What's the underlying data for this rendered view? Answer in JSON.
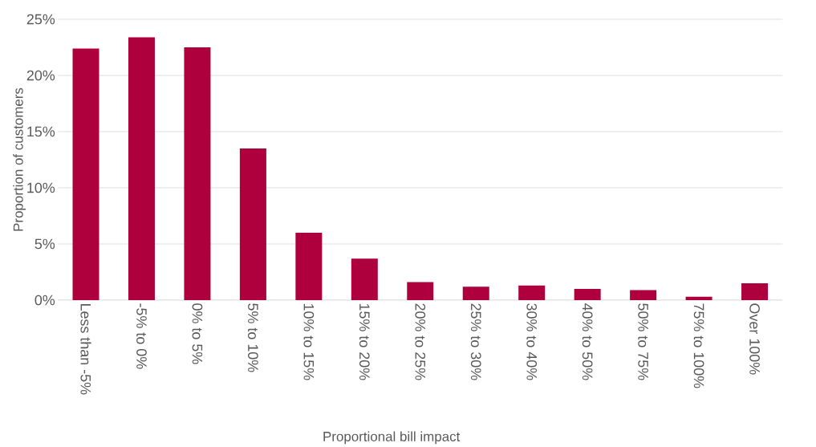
{
  "chart_data": {
    "type": "bar",
    "xlabel": "Proportional bill impact",
    "ylabel": "Proportion of customers",
    "categories": [
      "Less than -5%",
      "-5% to 0%",
      "0% to 5%",
      "5% to 10%",
      "10% to 15%",
      "15% to 20%",
      "20% to 25%",
      "25% to 30%",
      "30% to 40%",
      "40% to 50%",
      "50% to 75%",
      "75% to 100%",
      "Over 100%"
    ],
    "values": [
      22.4,
      23.4,
      22.5,
      13.5,
      6.0,
      3.7,
      1.6,
      1.2,
      1.3,
      1.0,
      0.9,
      0.3,
      1.5
    ],
    "color": "#ae003c",
    "ylim": [
      0,
      25
    ],
    "yticks": [
      {
        "value": 0,
        "label": "0%"
      },
      {
        "value": 5,
        "label": "5%"
      },
      {
        "value": 10,
        "label": "10%"
      },
      {
        "value": 15,
        "label": "15%"
      },
      {
        "value": 20,
        "label": "20%"
      },
      {
        "value": 25,
        "label": "25%"
      }
    ],
    "grid": "y"
  }
}
